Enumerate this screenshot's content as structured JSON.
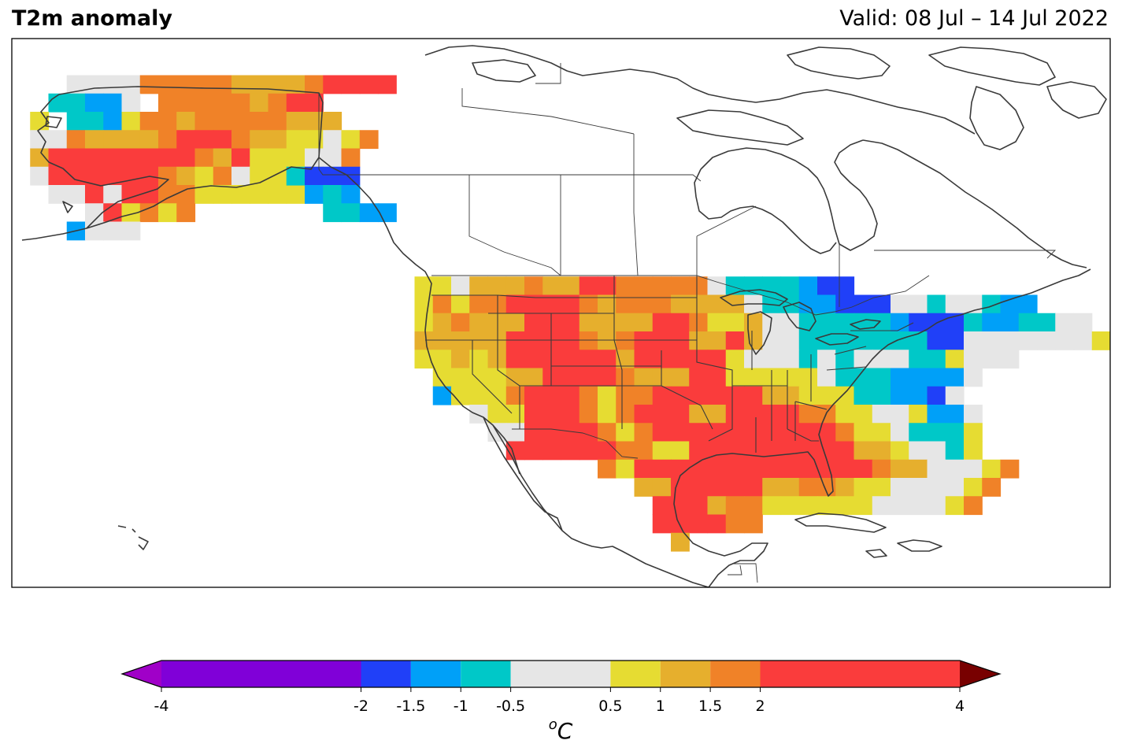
{
  "header": {
    "title": "T2m anomaly",
    "valid": "Valid: 08 Jul – 14 Jul 2022"
  },
  "colorbar": {
    "unit": "oC",
    "ticks": [
      "-4",
      "-2",
      "-1.5",
      "-1",
      "-0.5",
      "0.5",
      "1",
      "1.5",
      "2",
      "4"
    ],
    "tick_values": [
      -4,
      -2,
      -1.5,
      -1,
      -0.5,
      0.5,
      1,
      1.5,
      2,
      4
    ],
    "colors": [
      "#8000d8",
      "#2040f8",
      "#00a0f8",
      "#00c8c8",
      "#e6e6e6",
      "#e6dc32",
      "#e6af2d",
      "#f08228",
      "#fa3c3c"
    ],
    "under_color": "#a000c8",
    "over_color": "#780000"
  }
}
